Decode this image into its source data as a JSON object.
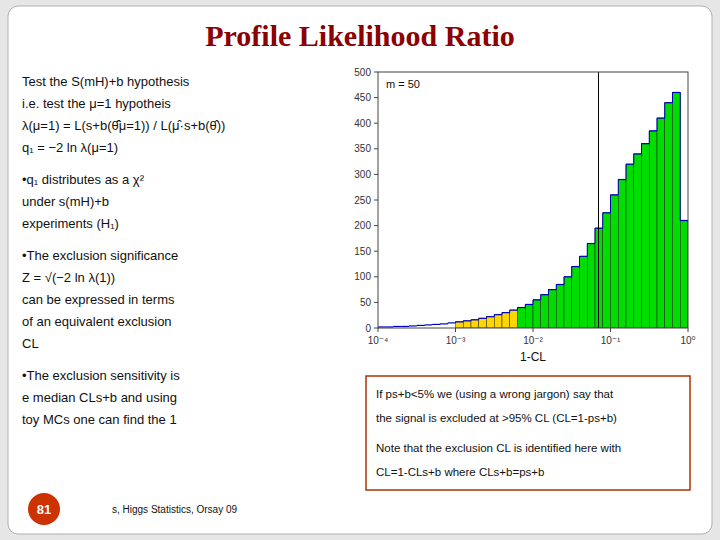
{
  "chart_data": {
    "type": "histogram",
    "title": "Profile Likelihood Ratio",
    "x_label": "1-CL",
    "annotation": "m = 50",
    "vline": 0.07,
    "bins": [
      0.0001,
      0.0001258925,
      0.0001584893,
      0.0001995262,
      0.0002511886,
      0.0003162278,
      0.0003981072,
      0.0005011872,
      0.0006309573,
      0.0007943282,
      0.001,
      0.001258925,
      0.001584893,
      0.001995262,
      0.002511886,
      0.003162278,
      0.003981072,
      0.005011872,
      0.006309573,
      0.007943282,
      0.01,
      0.01258925,
      0.01584893,
      0.01995262,
      0.02511886,
      0.03162278,
      0.03981072,
      0.05011872,
      0.06309573,
      0.07943282,
      0.1,
      0.1258925,
      0.1584893,
      0.1995262,
      0.2511886,
      0.3162278,
      0.3981072,
      0.5011872,
      0.6309573,
      0.7943282,
      1
    ],
    "values": [
      2,
      2,
      3,
      3,
      4,
      5,
      6,
      7,
      8,
      10,
      12,
      14,
      16,
      19,
      22,
      26,
      30,
      35,
      40,
      46,
      55,
      65,
      75,
      85,
      100,
      120,
      140,
      165,
      195,
      225,
      260,
      290,
      320,
      340,
      360,
      385,
      410,
      440,
      460,
      210
    ],
    "colors": [
      null,
      null,
      null,
      null,
      null,
      null,
      null,
      null,
      null,
      null,
      "#FFD700",
      "#FFD700",
      "#FFD700",
      "#FFD700",
      "#FFD700",
      "#FFD700",
      "#FFD700",
      "#FFD700",
      "#00DD00",
      "#00DD00",
      "#00DD00",
      "#00DD00",
      "#00DD00",
      "#00DD00",
      "#00DD00",
      "#00DD00",
      "#00DD00",
      "#00DD00",
      "#00DD00",
      "#00DD00",
      "#00DD00",
      "#00DD00",
      "#00DD00",
      "#00DD00",
      "#00DD00",
      "#00DD00",
      "#00DD00",
      "#00DD00",
      "#00DD00",
      "#00DD00"
    ],
    "color": "#0000BB",
    "log": "x",
    "xlim": [
      0.0001,
      1
    ],
    "xticks": [
      {
        "value": 0.0001,
        "label": "10⁻⁴"
      },
      {
        "value": 0.001,
        "label": "10⁻³"
      },
      {
        "value": 0.01,
        "label": "10⁻²"
      },
      {
        "value": 0.1,
        "label": "10⁻¹"
      },
      {
        "value": 1,
        "label": "10⁰"
      }
    ],
    "ylim": [
      0,
      500
    ],
    "yticks": [
      0,
      50,
      100,
      150,
      200,
      250,
      300,
      350,
      400,
      450,
      500
    ],
    "grid": false,
    "notes": [
      "Test the S(mH)+b hypothesis",
      "i.e. test the μ=1 hypotheis",
      "λ(μ=1) = L(s+b(θ̂̂μ=1)) / L(μ̂·s+b(θ̂))",
      "q₁ = −2 ln λ(μ=1)",
      "•q₁ distributes as a χ²",
      "under s(mH)+b",
      "experiments (H₁)",
      "•The exclusion significance",
      "Z = √(−2 ln λ(1))",
      "can be expressed in terms",
      "of an equivalent exclusion",
      "CL",
      "•The exclusion sensitivity is",
      "e median CLs+b and using",
      "toy MCs one can find the 1"
    ],
    "box_notes": [
      "If ps+b<5% we (using a wrong jargon) say that",
      "the signal is excluded at >95% CL  (CL=1-ps+b)",
      "Note that the exclusion CL is identified here with",
      "CL=1-CLs+b  where CLs+b=ps+b"
    ],
    "page_number": "81",
    "footer": "s, Higgs Statistics, Orsay 09"
  }
}
